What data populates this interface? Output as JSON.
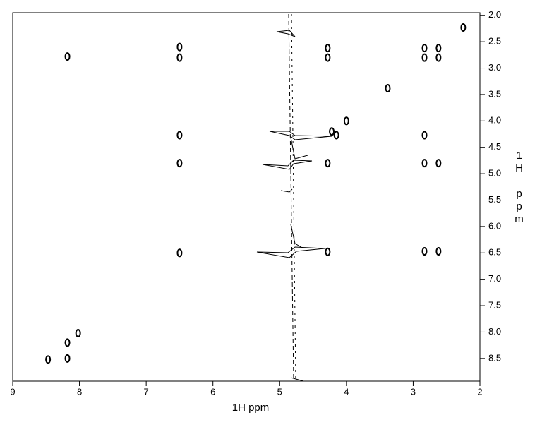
{
  "chart_data": {
    "type": "scatter",
    "x_label": "1H ppm",
    "y_label": "1H ppm",
    "xlim": [
      9,
      2
    ],
    "ylim": [
      1.95,
      8.93
    ],
    "xticks": [
      9,
      8,
      7,
      6,
      5,
      4,
      3,
      2
    ],
    "yticks": [
      {
        "value": 2,
        "label": "2.0"
      },
      2.5,
      {
        "value": 3,
        "label": "3.0"
      },
      3.5,
      {
        "value": 4,
        "label": "4.0"
      },
      4.5,
      {
        "value": 5,
        "label": "5.0"
      },
      5.5,
      {
        "value": 6,
        "label": "6.0"
      },
      6.5,
      {
        "value": 7,
        "label": "7.0"
      },
      7.5,
      {
        "value": 8,
        "label": "8.0"
      },
      8.5
    ],
    "color": "#000000",
    "x": [
      8.47,
      8.18,
      8.18,
      8.02,
      8.18,
      6.5,
      6.5,
      6.5,
      6.5,
      6.5,
      4.28,
      4.28,
      4.28,
      4.28,
      4.22,
      4.15,
      4.0,
      2.83,
      2.83,
      2.62,
      2.62,
      2.83,
      2.83,
      2.62,
      2.83,
      2.62,
      3.38,
      2.25
    ],
    "y": [
      8.52,
      8.2,
      8.5,
      8.02,
      2.78,
      2.6,
      2.8,
      4.27,
      4.8,
      6.5,
      2.62,
      2.8,
      4.8,
      6.48,
      4.2,
      4.27,
      4.0,
      2.62,
      2.8,
      2.62,
      2.8,
      4.27,
      4.8,
      4.8,
      6.47,
      6.47,
      3.38,
      2.23
    ]
  }
}
